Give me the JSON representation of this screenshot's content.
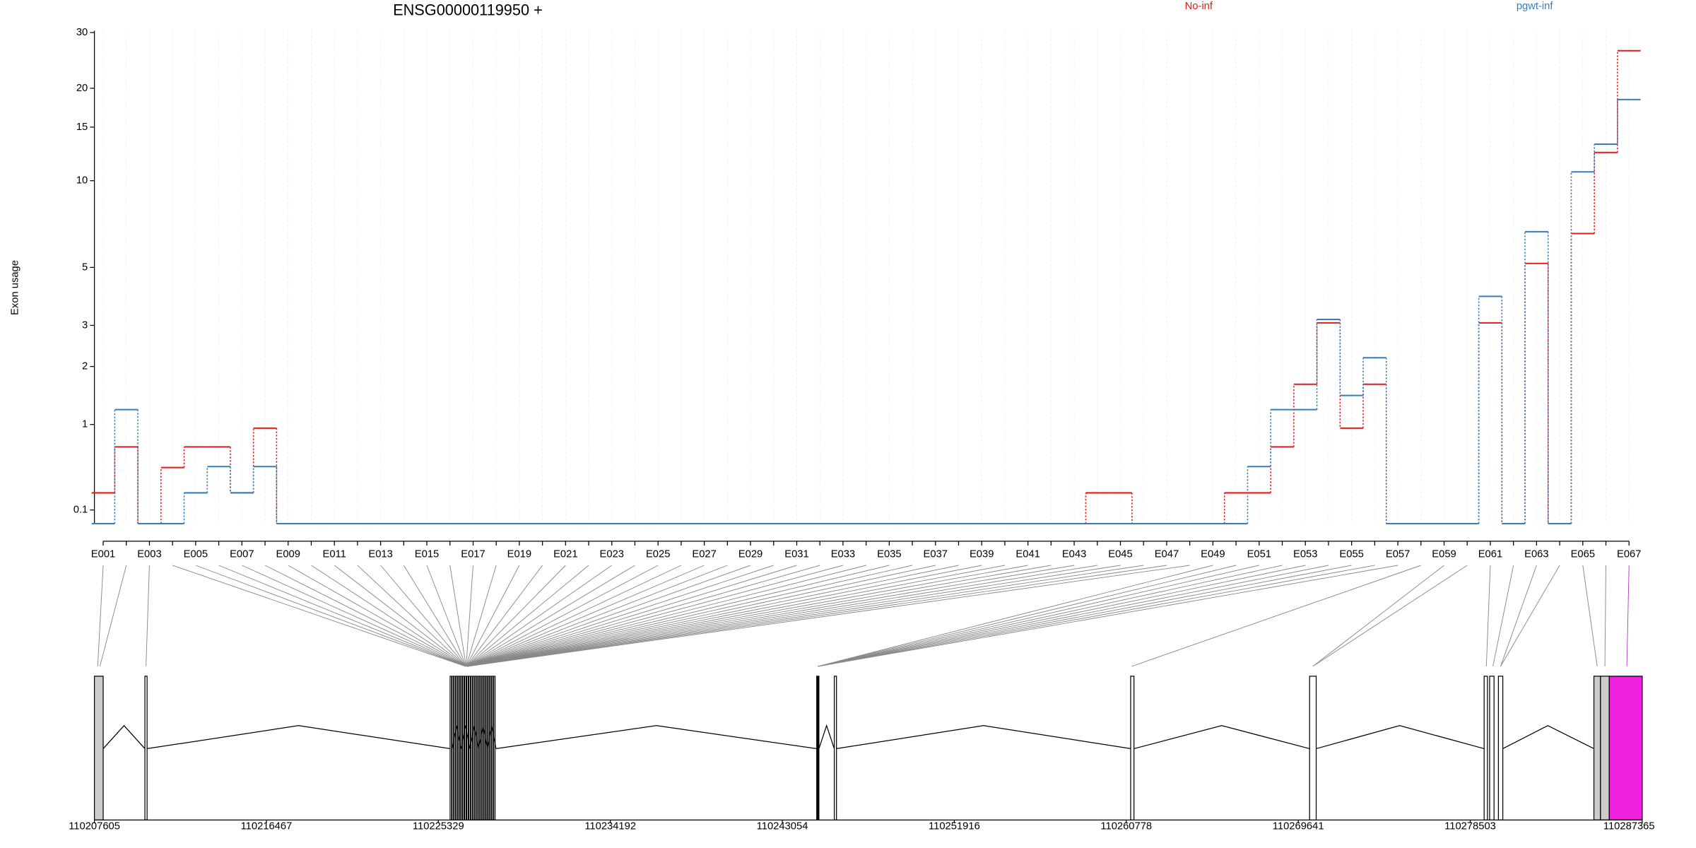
{
  "chart_data": {
    "type": "line",
    "title": "ENSG00000119950 +",
    "y_label": "Exon usage",
    "yscale": "log10(x+1)",
    "ylim": [
      0,
      32
    ],
    "yticks": [
      0.1,
      1,
      2,
      3,
      5,
      10,
      15,
      20,
      30
    ],
    "grid": "x",
    "categories": [
      "E001",
      null,
      "E003",
      null,
      "E005",
      null,
      "E007",
      null,
      "E009",
      null,
      "E011",
      null,
      "E013",
      null,
      "E015",
      null,
      "E017",
      null,
      "E019",
      null,
      "E021",
      null,
      "E023",
      null,
      "E025",
      null,
      "E027",
      null,
      "E029",
      null,
      "E031",
      null,
      "E033",
      null,
      "E035",
      null,
      "E037",
      null,
      "E039",
      null,
      "E041",
      null,
      "E043",
      null,
      "E045",
      null,
      "E047",
      null,
      "E049",
      null,
      "E051",
      null,
      "E053",
      null,
      "E055",
      null,
      "E057",
      null,
      "E059",
      null,
      "E061",
      null,
      "E063",
      null,
      "E065",
      null,
      "E067"
    ],
    "series": [
      {
        "name": "No-inf",
        "color": "#e41a1c",
        "values": [
          0.24,
          0.71,
          0,
          0.48,
          0.71,
          0.71,
          0.24,
          0.95,
          0,
          0,
          0,
          0,
          0,
          0,
          0,
          0,
          0,
          0,
          0,
          0,
          0,
          0,
          0,
          0,
          0,
          0,
          0,
          0,
          0,
          0,
          0,
          0,
          0,
          0,
          0,
          0,
          0,
          0,
          0,
          0,
          0,
          0,
          0,
          0.24,
          0.24,
          0,
          0,
          0,
          0,
          0.24,
          0.24,
          0.71,
          1.65,
          3.07,
          0.95,
          1.65,
          0,
          0,
          0,
          0,
          3.07,
          0,
          5.17,
          0,
          6.6,
          12.4,
          26.3
        ]
      },
      {
        "name": "pgwt-inf",
        "color": "#377eb8",
        "values": [
          0,
          1.22,
          0,
          0,
          0.24,
          0.49,
          0.24,
          0.49,
          0,
          0,
          0,
          0,
          0,
          0,
          0,
          0,
          0,
          0,
          0,
          0,
          0,
          0,
          0,
          0,
          0,
          0,
          0,
          0,
          0,
          0,
          0,
          0,
          0,
          0,
          0,
          0,
          0,
          0,
          0,
          0,
          0,
          0,
          0,
          0,
          0,
          0,
          0,
          0,
          0,
          0,
          0.49,
          1.22,
          1.22,
          3.17,
          1.45,
          2.19,
          0,
          0,
          0,
          0,
          3.9,
          0,
          6.7,
          0,
          10.7,
          13.2,
          18.4
        ]
      }
    ],
    "x2lim": [
      110207605,
      110287365
    ],
    "x2ticks": [
      110207605,
      110216467,
      110225329,
      110234192,
      110243054,
      110251916,
      110260778,
      110269641,
      110278503,
      110287365
    ]
  }
}
